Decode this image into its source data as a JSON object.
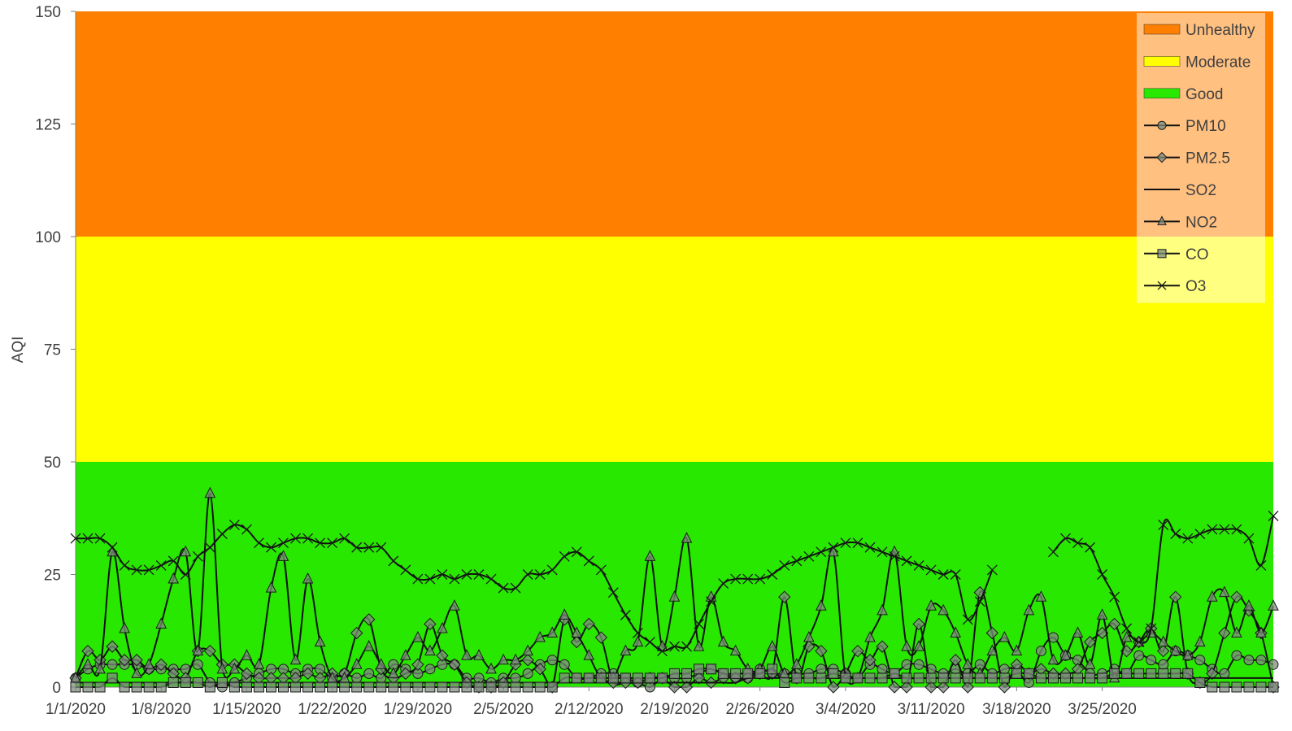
{
  "chart_data": {
    "type": "line",
    "ylabel": "AQI",
    "ylim": [
      0,
      150
    ],
    "yticks": [
      "0",
      "25",
      "50",
      "75",
      "100",
      "125",
      "150"
    ],
    "xticks": [
      "1/1/2020",
      "1/8/2020",
      "1/15/2020",
      "1/22/2020",
      "1/29/2020",
      "2/5/2020",
      "2/12/2020",
      "2/19/2020",
      "2/26/2020",
      "3/4/2020",
      "3/11/2020",
      "3/18/2020",
      "3/25/2020"
    ],
    "x_start": "1/1/2020",
    "x_end": "3/31/2020",
    "legend_position": "top-right",
    "bands": [
      {
        "name": "Unhealthy",
        "from": 100,
        "to": 150,
        "color": "#FF8000"
      },
      {
        "name": "Moderate",
        "from": 50,
        "to": 100,
        "color": "#FFFF00"
      },
      {
        "name": "Good",
        "from": 0,
        "to": 50,
        "color": "#29E800"
      }
    ],
    "series": [
      {
        "name": "PM10",
        "marker": "circle",
        "values": [
          2,
          4,
          5,
          5,
          5,
          5,
          4,
          4,
          4,
          4,
          5,
          1,
          0,
          1,
          2,
          3,
          4,
          4,
          3,
          4,
          4,
          2,
          3,
          2,
          3,
          2,
          5,
          4,
          3,
          4,
          5,
          5,
          2,
          2,
          1,
          2,
          2,
          3,
          5,
          6,
          5,
          2,
          2,
          3,
          3,
          2,
          1,
          0,
          2,
          2,
          2,
          3,
          4,
          3,
          2,
          2,
          4,
          3,
          3,
          3,
          3,
          4,
          4,
          3,
          2,
          5,
          4,
          3,
          5,
          5,
          4,
          3,
          4,
          3,
          5,
          3,
          4,
          4,
          1,
          8,
          11,
          7,
          6,
          3,
          3,
          4,
          3,
          7,
          6,
          5,
          8,
          7,
          6,
          4,
          3,
          7,
          6,
          6,
          5
        ]
      },
      {
        "name": "PM2.5",
        "marker": "diamond",
        "values": [
          2,
          8,
          6,
          9,
          6,
          6,
          4,
          5,
          3,
          2,
          8,
          8,
          5,
          5,
          3,
          2,
          2,
          2,
          2,
          3,
          2,
          3,
          3,
          12,
          15,
          4,
          2,
          3,
          5,
          14,
          7,
          5,
          1,
          0,
          0,
          1,
          5,
          6,
          4,
          0,
          15,
          10,
          14,
          11,
          1,
          1,
          1,
          2,
          2,
          0,
          0,
          2,
          1,
          2,
          2,
          2,
          3,
          3,
          20,
          2,
          9,
          8,
          0,
          3,
          8,
          6,
          9,
          0,
          0,
          14,
          0,
          0,
          6,
          0,
          21,
          12,
          0,
          5,
          3,
          4,
          3,
          3,
          4,
          10,
          12,
          14,
          8,
          10,
          13,
          8,
          20,
          3,
          1,
          3,
          12,
          20,
          17,
          12,
          0
        ]
      },
      {
        "name": "SO2",
        "marker": "none",
        "values": [
          1,
          1,
          1,
          1,
          1,
          1,
          1,
          1,
          1,
          1,
          1,
          1,
          1,
          1,
          1,
          1,
          1,
          1,
          1,
          1,
          1,
          1,
          1,
          1,
          1,
          1,
          1,
          1,
          1,
          1,
          1,
          1,
          1,
          1,
          1,
          1,
          1,
          1,
          1,
          1,
          1,
          1,
          1,
          1,
          1,
          1,
          1,
          1,
          1,
          1,
          1,
          1,
          1,
          1,
          1,
          2,
          2,
          2,
          2,
          2,
          2,
          2,
          2,
          2,
          2,
          2,
          2,
          2,
          2,
          2,
          2,
          2,
          2,
          2,
          2,
          2,
          2,
          2,
          2,
          2,
          2,
          2,
          2,
          2,
          2,
          2,
          2,
          2,
          2,
          2,
          2,
          2,
          2,
          2,
          2,
          2,
          2,
          2,
          2
        ]
      },
      {
        "name": "NO2",
        "marker": "triangle",
        "values": [
          2,
          5,
          4,
          30,
          13,
          3,
          5,
          14,
          24,
          30,
          8,
          43,
          4,
          4,
          7,
          5,
          22,
          29,
          6,
          24,
          10,
          2,
          2,
          5,
          9,
          5,
          3,
          7,
          11,
          8,
          13,
          18,
          7,
          7,
          4,
          6,
          6,
          8,
          11,
          12,
          16,
          12,
          7,
          2,
          2,
          8,
          10,
          29,
          9,
          20,
          33,
          9,
          20,
          10,
          8,
          4,
          4,
          9,
          3,
          5,
          11,
          18,
          30,
          2,
          2,
          11,
          17,
          30,
          9,
          9,
          18,
          17,
          12,
          5,
          3,
          8,
          11,
          8,
          17,
          20,
          6,
          7,
          12,
          5,
          16,
          2,
          11,
          10,
          12,
          10,
          8,
          7,
          10,
          20,
          21,
          12,
          18,
          12,
          18
        ]
      },
      {
        "name": "CO",
        "marker": "square",
        "values": [
          0,
          0,
          0,
          2,
          0,
          0,
          0,
          0,
          1,
          1,
          1,
          0,
          1,
          0,
          0,
          0,
          0,
          0,
          0,
          0,
          0,
          0,
          0,
          0,
          0,
          0,
          0,
          0,
          0,
          0,
          0,
          0,
          0,
          0,
          0,
          0,
          0,
          0,
          0,
          0,
          2,
          2,
          2,
          2,
          2,
          2,
          2,
          2,
          2,
          3,
          3,
          4,
          4,
          3,
          3,
          3,
          3,
          4,
          1,
          2,
          2,
          2,
          3,
          2,
          2,
          2,
          2,
          3,
          2,
          2,
          2,
          2,
          2,
          2,
          2,
          2,
          2,
          3,
          3,
          2,
          2,
          2,
          2,
          2,
          2,
          3,
          3,
          3,
          3,
          3,
          3,
          3,
          1,
          0,
          0,
          0,
          0,
          0,
          0
        ]
      },
      {
        "name": "O3",
        "marker": "x",
        "values": [
          33,
          33,
          33,
          31,
          27,
          26,
          26,
          27,
          28,
          25,
          29,
          31,
          34,
          36,
          35,
          32,
          31,
          32,
          33,
          33,
          32,
          32,
          33,
          31,
          31,
          31,
          28,
          26,
          24,
          24,
          25,
          24,
          25,
          25,
          24,
          22,
          22,
          25,
          25,
          26,
          29,
          30,
          28,
          26,
          21,
          16,
          12,
          10,
          8,
          9,
          9,
          14,
          19,
          23,
          24,
          24,
          24,
          25,
          27,
          28,
          29,
          30,
          31,
          32,
          32,
          31,
          30,
          29,
          28,
          27,
          26,
          25,
          25,
          15,
          19,
          26,
          null,
          null,
          null,
          null,
          30,
          33,
          32,
          31,
          25,
          20,
          13,
          10,
          13,
          36,
          34,
          33,
          34,
          35,
          35,
          35,
          33,
          27,
          38
        ]
      }
    ]
  }
}
